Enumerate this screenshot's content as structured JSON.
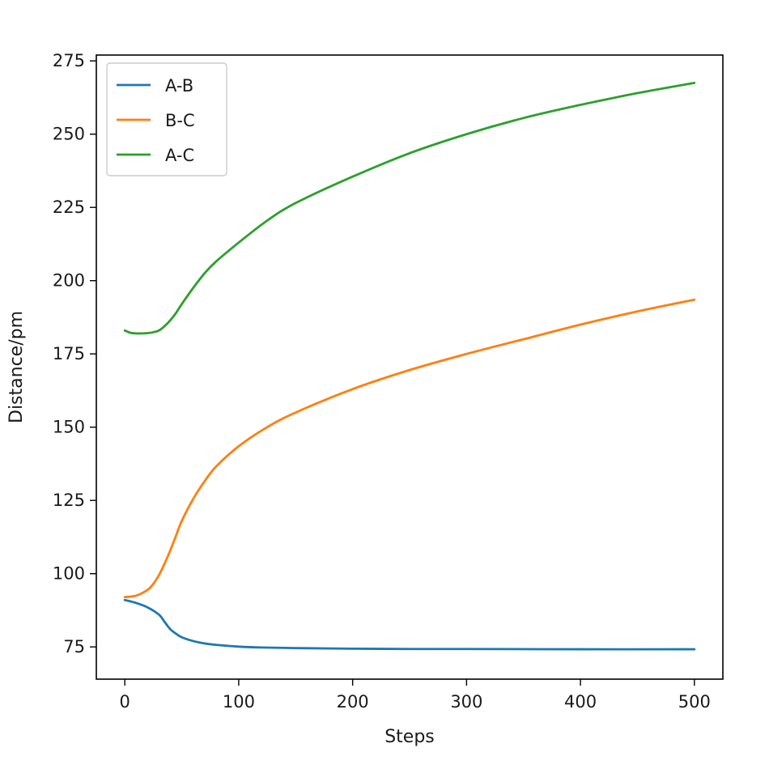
{
  "chart_data": {
    "type": "line",
    "title": "",
    "xlabel": "Steps",
    "ylabel": "Distance/pm",
    "xlim": [
      -25,
      525
    ],
    "ylim": [
      64,
      277
    ],
    "xticks": [
      0,
      100,
      200,
      300,
      400,
      500
    ],
    "yticks": [
      75,
      100,
      125,
      150,
      175,
      200,
      225,
      250,
      275
    ],
    "grid": false,
    "legend": "upper-left",
    "series": [
      {
        "name": "A-B",
        "color": "#1f77b4",
        "x": [
          0,
          10,
          20,
          30,
          35,
          40,
          45,
          50,
          60,
          70,
          80,
          100,
          120,
          150,
          200,
          250,
          300,
          400,
          500
        ],
        "y": [
          91,
          90,
          88.5,
          86,
          83.5,
          81,
          79.5,
          78.3,
          77,
          76.2,
          75.7,
          75.1,
          74.8,
          74.6,
          74.4,
          74.3,
          74.3,
          74.2,
          74.2
        ]
      },
      {
        "name": "B-C",
        "color": "#ff7f0e",
        "x": [
          0,
          10,
          20,
          25,
          30,
          35,
          40,
          45,
          50,
          60,
          70,
          80,
          100,
          125,
          150,
          200,
          250,
          300,
          350,
          400,
          450,
          500
        ],
        "y": [
          92,
          92.5,
          94.5,
          96.5,
          99.5,
          103.5,
          108,
          113,
          118,
          125.5,
          131.5,
          136.5,
          143.5,
          150,
          155,
          163,
          169.5,
          175,
          180,
          185,
          189.5,
          193.5
        ]
      },
      {
        "name": "A-C",
        "color": "#2ca02c",
        "x": [
          0,
          5,
          10,
          15,
          20,
          25,
          30,
          35,
          40,
          45,
          50,
          60,
          70,
          80,
          100,
          125,
          150,
          200,
          250,
          300,
          350,
          400,
          450,
          500
        ],
        "y": [
          183,
          182.2,
          182,
          182,
          182.1,
          182.4,
          183,
          184.5,
          186.5,
          189,
          192,
          197.5,
          202.5,
          206.5,
          213,
          220.5,
          226.5,
          235.5,
          243.5,
          250,
          255.5,
          260,
          264,
          267.5
        ]
      }
    ]
  }
}
